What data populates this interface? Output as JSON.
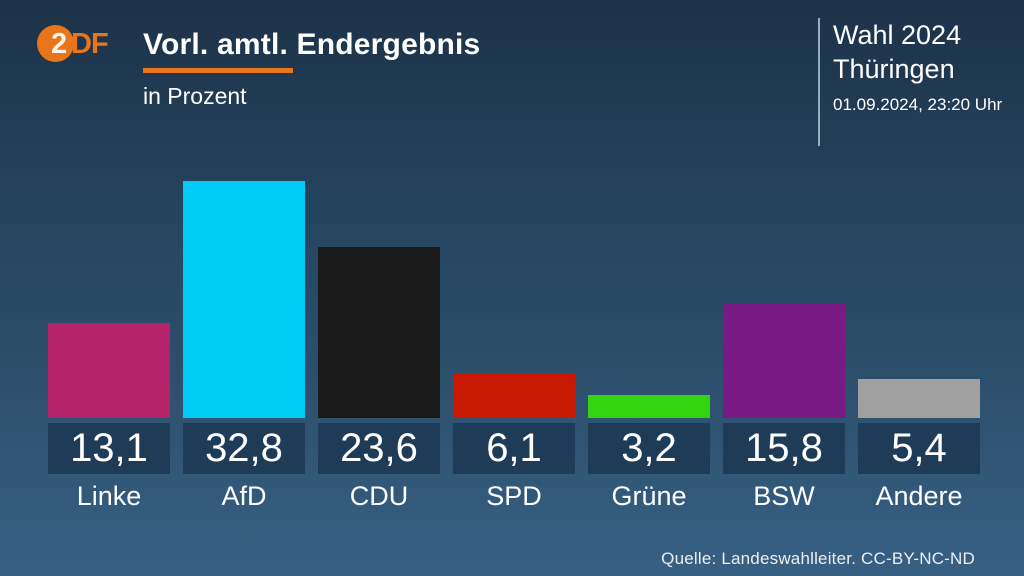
{
  "header": {
    "logo_text_2": "2",
    "logo_text_df": "DF",
    "title": "Vorl. amtl. Endergebnis",
    "subtitle": "in Prozent",
    "election_line1": "Wahl 2024",
    "election_line2": "Thüringen",
    "timestamp": "01.09.2024, 23:20 Uhr"
  },
  "footer": {
    "source": "Quelle: Landeswahlleiter. CC-BY-NC-ND"
  },
  "colors": {
    "accent_orange": "#e8751a",
    "value_box": "#1e3c58",
    "background_top": "#1c3249",
    "background_bottom": "#386083",
    "separator": "#adc3d4"
  },
  "chart_data": {
    "type": "bar",
    "title": "Vorl. amtl. Endergebnis",
    "subtitle": "in Prozent",
    "categories": [
      "Linke",
      "AfD",
      "CDU",
      "SPD",
      "Grüne",
      "BSW",
      "Andere"
    ],
    "values": [
      13.1,
      32.8,
      23.6,
      6.1,
      3.2,
      15.8,
      5.4
    ],
    "values_display": [
      "13,1",
      "32,8",
      "23,6",
      "6,1",
      "3,2",
      "15,8",
      "5,4"
    ],
    "bar_colors": [
      "#b5246b",
      "#00cbf7",
      "#1b1b1b",
      "#c91905",
      "#31d40f",
      "#7a1a85",
      "#a0a0a0"
    ],
    "unit": "Prozent",
    "ylim": [
      0,
      35.6
    ],
    "grid": false,
    "legend": "none",
    "value_labels": "below bars in boxes"
  }
}
